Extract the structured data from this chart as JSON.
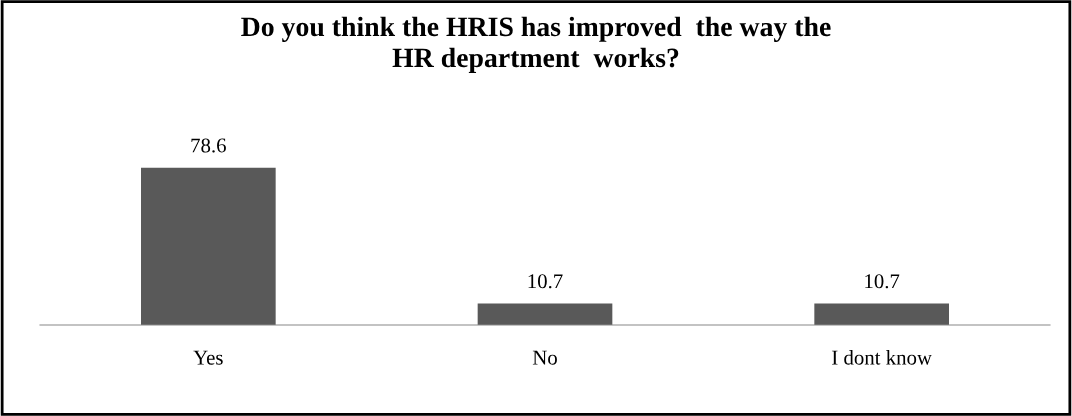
{
  "chart_data": {
    "type": "bar",
    "title": "Do you think the HRIS has improved  the way the\nHR department  works?",
    "categories": [
      "Yes",
      "No",
      "I dont know"
    ],
    "values": [
      78.6,
      10.7,
      10.7
    ],
    "color": "#595959",
    "data_labels": true,
    "grid": false,
    "legend": false
  }
}
